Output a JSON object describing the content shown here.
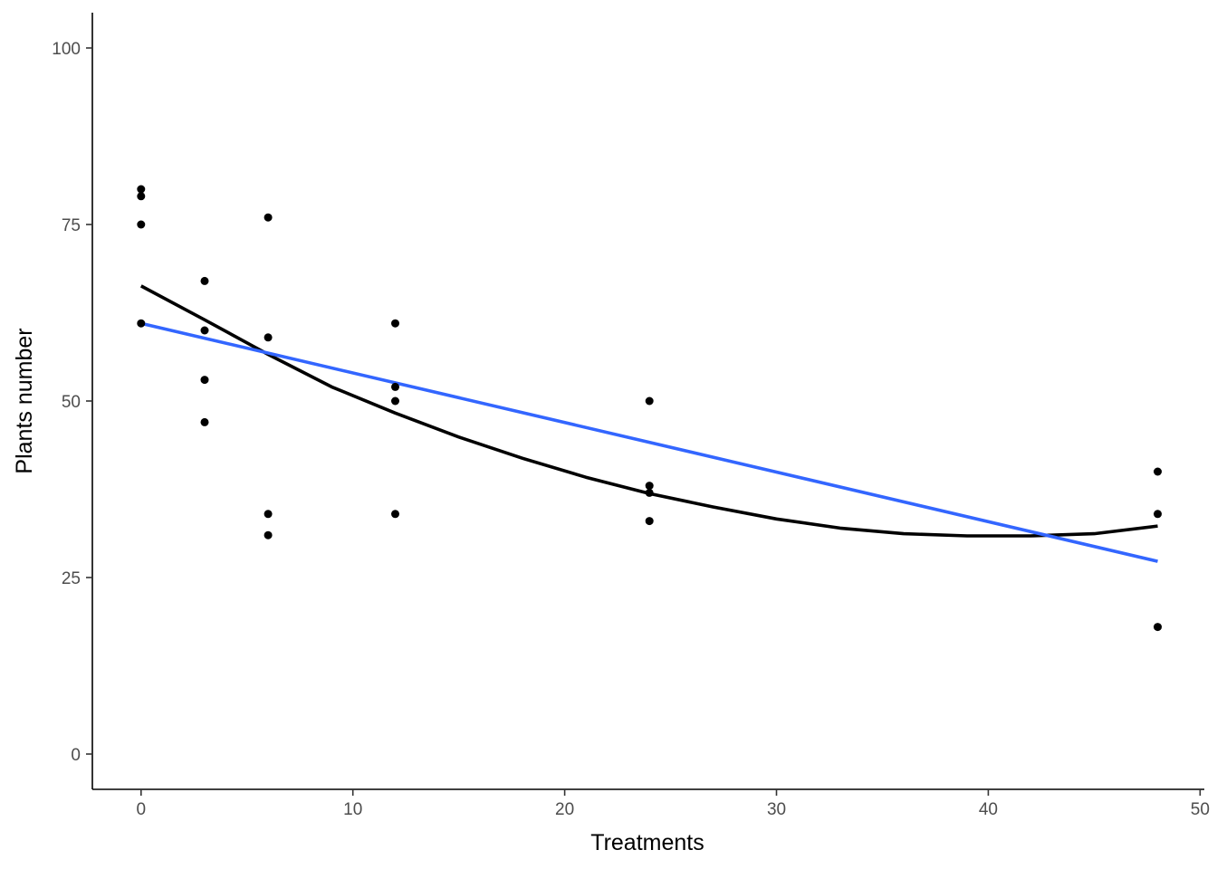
{
  "chart_data": {
    "type": "scatter",
    "xlabel": "Treatments",
    "ylabel": "Plants number",
    "xlim": [
      -2.3,
      50.2
    ],
    "ylim": [
      -5,
      105
    ],
    "x_ticks": [
      0,
      10,
      20,
      30,
      40,
      50
    ],
    "y_ticks": [
      0,
      25,
      50,
      75,
      100
    ],
    "grid": false,
    "points": [
      {
        "x": 0,
        "y": 80
      },
      {
        "x": 0,
        "y": 79
      },
      {
        "x": 0,
        "y": 75
      },
      {
        "x": 0,
        "y": 61
      },
      {
        "x": 3,
        "y": 67
      },
      {
        "x": 3,
        "y": 60
      },
      {
        "x": 3,
        "y": 53
      },
      {
        "x": 3,
        "y": 47
      },
      {
        "x": 6,
        "y": 76
      },
      {
        "x": 6,
        "y": 59
      },
      {
        "x": 6,
        "y": 34
      },
      {
        "x": 6,
        "y": 31
      },
      {
        "x": 12,
        "y": 61
      },
      {
        "x": 12,
        "y": 52
      },
      {
        "x": 12,
        "y": 50
      },
      {
        "x": 12,
        "y": 34
      },
      {
        "x": 24,
        "y": 50
      },
      {
        "x": 24,
        "y": 38
      },
      {
        "x": 24,
        "y": 37
      },
      {
        "x": 24,
        "y": 33
      },
      {
        "x": 48,
        "y": 40
      },
      {
        "x": 48,
        "y": 34
      },
      {
        "x": 48,
        "y": 18
      }
    ],
    "fit_lines": [
      {
        "kind": "quadratic",
        "color": "#000000",
        "x": [
          0,
          3,
          6,
          9,
          12,
          15,
          18,
          21,
          24,
          27,
          30,
          33,
          36,
          39,
          42,
          45,
          48
        ],
        "y": [
          66.3,
          61.5,
          56.6,
          52.0,
          48.3,
          44.9,
          41.9,
          39.2,
          36.9,
          35.0,
          33.3,
          32.0,
          31.2,
          30.9,
          30.9,
          31.2,
          32.3
        ]
      },
      {
        "kind": "linear",
        "color": "#3366FF",
        "x": [
          0,
          48
        ],
        "y": [
          61.0,
          27.3
        ]
      }
    ]
  }
}
